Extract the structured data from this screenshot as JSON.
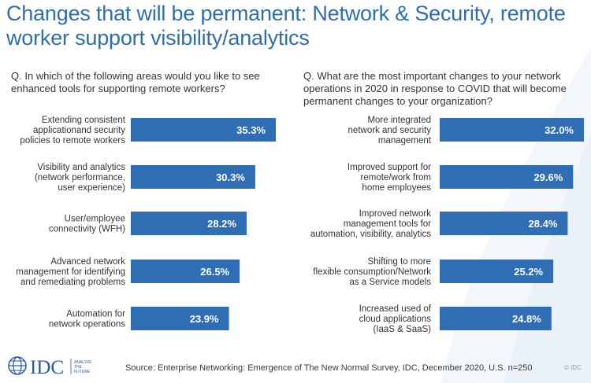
{
  "title": "Changes that will be permanent: Network & Security, remote worker support visibility/analytics",
  "brand": {
    "logo_text": "IDC",
    "tagline": [
      "ANALYZE",
      "THE",
      "FUTURE"
    ],
    "color": "#2a5aa6"
  },
  "source": "Source: Enterprise Networking: Emergence of The New Normal Survey, IDC, December 2020, U.S. n=250",
  "copyright": "© IDC",
  "colors": {
    "bar": "#2f6db5",
    "title": "#2f6db3",
    "value_text": "#ffffff"
  },
  "chart_data": [
    {
      "type": "bar",
      "orientation": "horizontal",
      "title": "Q. In which of the following areas would you like to see enhanced tools for supporting remote workers?",
      "categories": [
        [
          "Extending consistent",
          "applicationand security",
          "policies to remote workers"
        ],
        [
          "Visibility and analytics",
          "(network performance,",
          "user experience)"
        ],
        [
          "User/employee",
          "connectivity (WFH)"
        ],
        [
          "Advanced network",
          "management for identifying",
          "and remediating problems"
        ],
        [
          "Automation for",
          "network operations"
        ]
      ],
      "values": [
        35.3,
        30.3,
        28.2,
        26.5,
        23.9
      ],
      "value_labels": [
        "35.3%",
        "30.3%",
        "28.2%",
        "26.5%",
        "23.9%"
      ],
      "unit": "%"
    },
    {
      "type": "bar",
      "orientation": "horizontal",
      "title": "Q. What are the most important changes to your network operations in 2020 in response to COVID that will become permanent changes to your organization?",
      "categories": [
        [
          "More integrated",
          "network and security",
          "management"
        ],
        [
          "Improved support for",
          "remote/work from",
          "home employees"
        ],
        [
          "Improved network",
          "management tools for",
          "automation, visibility, analytics"
        ],
        [
          "Shifting to more",
          "flexible consumption/Network",
          "as a Service models"
        ],
        [
          "Increased used of",
          "cloud applications",
          "(IaaS & SaaS)"
        ]
      ],
      "values": [
        32.0,
        29.6,
        28.4,
        25.2,
        24.8
      ],
      "value_labels": [
        "32.0%",
        "29.6%",
        "28.4%",
        "25.2%",
        "24.8%"
      ],
      "unit": "%"
    }
  ]
}
